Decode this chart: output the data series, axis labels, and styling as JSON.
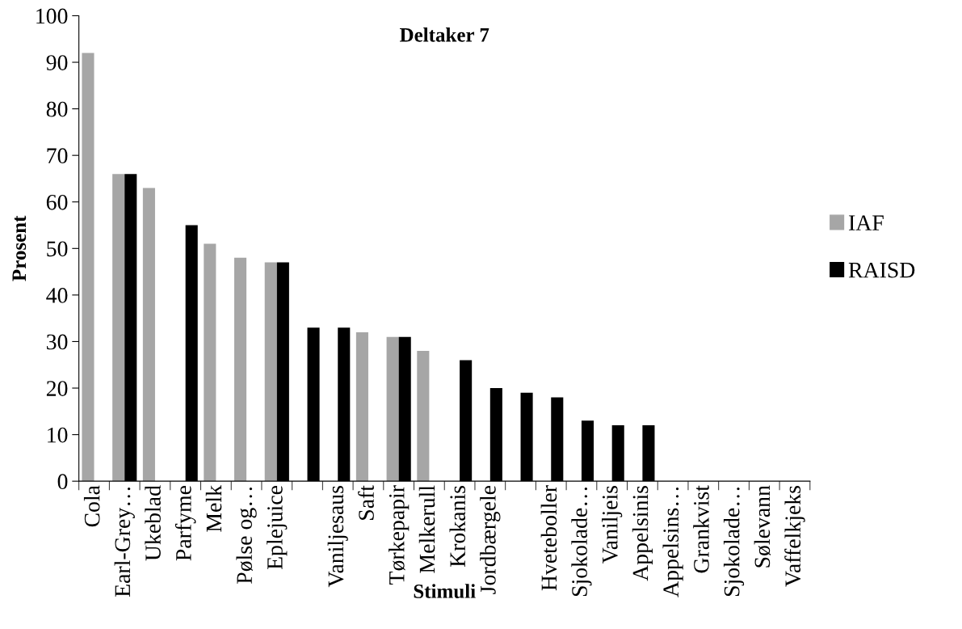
{
  "chart_data": {
    "type": "bar",
    "title": "Deltaker 7",
    "xlabel": "Stimuli",
    "ylabel": "Prosent",
    "categories": [
      "Cola",
      "Earl-Grey…",
      "Ukeblad",
      "Parfyme",
      "Melk",
      "Pølse og…",
      "Eplejuice",
      null,
      "Vaniljesaus",
      "Saft",
      "Tørkepapir",
      "Melkerull",
      "Krokanis",
      "Jordbærgele",
      null,
      "Hveteboller",
      "Sjokolade…",
      "Vaniljeis",
      "Appelsinis",
      "Appelsins…",
      "Grankvist",
      "Sjokolade…",
      "Sølevann",
      "Vaffelkjeks"
    ],
    "series": [
      {
        "name": "IAF",
        "color": "#a6a6a6",
        "values": [
          92,
          66,
          63,
          0,
          51,
          48,
          47,
          0,
          0,
          32,
          31,
          28,
          0,
          0,
          0,
          0,
          0,
          0,
          0,
          0,
          0,
          0,
          0,
          0
        ]
      },
      {
        "name": "RAISD",
        "color": "#000000",
        "values": [
          0,
          66,
          0,
          55,
          0,
          0,
          47,
          33,
          33,
          0,
          31,
          0,
          26,
          20,
          19,
          18,
          13,
          12,
          12,
          0,
          0,
          0,
          0,
          0
        ]
      }
    ],
    "ylim": [
      0,
      100
    ],
    "yticks": [
      0,
      10,
      20,
      30,
      40,
      50,
      60,
      70,
      80,
      90,
      100
    ],
    "grid": false,
    "legend": "right"
  }
}
